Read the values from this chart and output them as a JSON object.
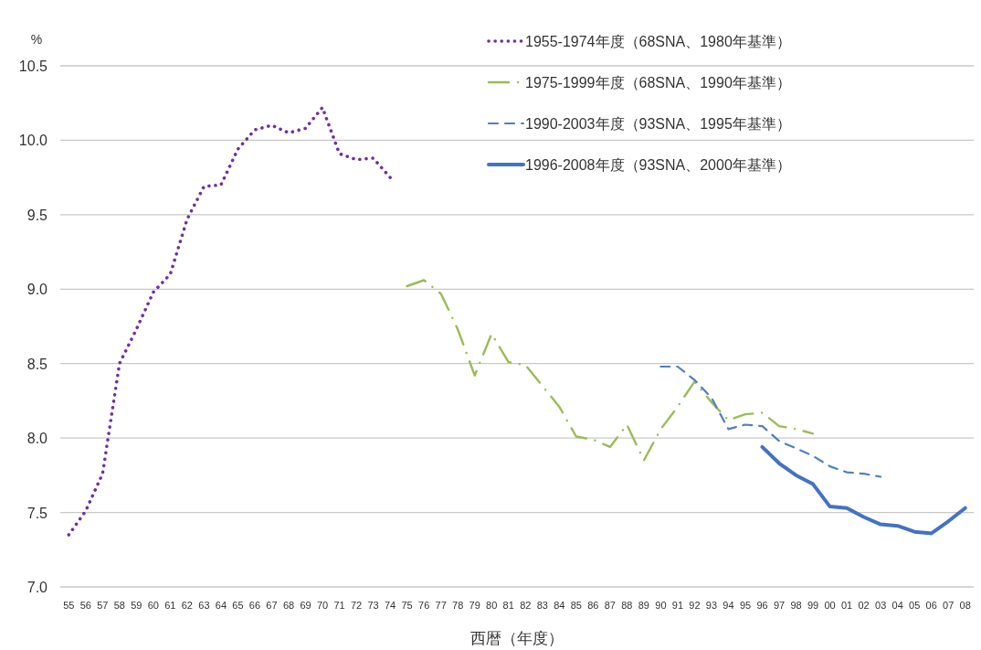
{
  "chart_data": {
    "type": "line",
    "ylabel": "%",
    "xlabel": "西暦（年度）",
    "categories": [
      "55",
      "56",
      "57",
      "58",
      "59",
      "60",
      "61",
      "62",
      "63",
      "64",
      "65",
      "66",
      "67",
      "68",
      "69",
      "70",
      "71",
      "72",
      "73",
      "74",
      "75",
      "76",
      "77",
      "78",
      "79",
      "80",
      "81",
      "82",
      "83",
      "84",
      "85",
      "86",
      "87",
      "88",
      "89",
      "90",
      "91",
      "92",
      "93",
      "94",
      "95",
      "96",
      "97",
      "98",
      "99",
      "00",
      "01",
      "02",
      "03",
      "04",
      "05",
      "06",
      "07",
      "08"
    ],
    "ylim": [
      7.0,
      10.5
    ],
    "yticks": [
      {
        "value": 7.0,
        "label": "7.0"
      },
      {
        "value": 7.5,
        "label": "7.5"
      },
      {
        "value": 8.0,
        "label": "8.0"
      },
      {
        "value": 8.5,
        "label": "8.5"
      },
      {
        "value": 9.0,
        "label": "9.0"
      },
      {
        "value": 9.5,
        "label": "9.5"
      },
      {
        "value": 10.0,
        "label": "10.0"
      },
      {
        "value": 10.5,
        "label": "10.5"
      }
    ],
    "grid": "y",
    "legend": "top right",
    "series": [
      {
        "name": "1955-1974年度（68SNA、1980年基準）",
        "color": "#7030a0",
        "line_style": "dotted",
        "values": [
          7.35,
          7.51,
          7.76,
          8.5,
          8.73,
          8.98,
          9.1,
          9.47,
          9.69,
          9.7,
          9.94,
          10.07,
          10.1,
          10.05,
          10.08,
          10.22,
          9.91,
          9.87,
          9.88,
          9.75,
          null,
          null,
          null,
          null,
          null,
          null,
          null,
          null,
          null,
          null,
          null,
          null,
          null,
          null,
          null,
          null,
          null,
          null,
          null,
          null,
          null,
          null,
          null,
          null,
          null,
          null,
          null,
          null,
          null,
          null,
          null,
          null,
          null,
          null
        ]
      },
      {
        "name": "1975-1999年度（68SNA、1990年基準）",
        "color": "#9bbb59",
        "line_style": "dashdot",
        "values": [
          null,
          null,
          null,
          null,
          null,
          null,
          null,
          null,
          null,
          null,
          null,
          null,
          null,
          null,
          null,
          null,
          null,
          null,
          null,
          null,
          9.02,
          9.06,
          8.97,
          8.73,
          8.42,
          8.7,
          8.51,
          8.49,
          8.35,
          8.21,
          8.01,
          7.99,
          7.94,
          8.09,
          7.85,
          8.06,
          8.21,
          8.38,
          8.24,
          8.12,
          8.16,
          8.17,
          8.08,
          8.06,
          8.03,
          null,
          null,
          null,
          null,
          null,
          null,
          null,
          null,
          null
        ]
      },
      {
        "name": "1990-2003年度（93SNA、1995年基準）",
        "color": "#4f81bd",
        "line_style": "dashed",
        "values": [
          null,
          null,
          null,
          null,
          null,
          null,
          null,
          null,
          null,
          null,
          null,
          null,
          null,
          null,
          null,
          null,
          null,
          null,
          null,
          null,
          null,
          null,
          null,
          null,
          null,
          null,
          null,
          null,
          null,
          null,
          null,
          null,
          null,
          null,
          null,
          8.48,
          8.48,
          8.39,
          8.27,
          8.06,
          8.09,
          8.08,
          7.98,
          7.93,
          7.88,
          7.81,
          7.77,
          7.76,
          7.74,
          null,
          null,
          null,
          null,
          null
        ]
      },
      {
        "name": "1996-2008年度（93SNA、2000年基準）",
        "color": "#4472c4",
        "line_style": "solid",
        "values": [
          null,
          null,
          null,
          null,
          null,
          null,
          null,
          null,
          null,
          null,
          null,
          null,
          null,
          null,
          null,
          null,
          null,
          null,
          null,
          null,
          null,
          null,
          null,
          null,
          null,
          null,
          null,
          null,
          null,
          null,
          null,
          null,
          null,
          null,
          null,
          null,
          null,
          null,
          null,
          null,
          null,
          7.94,
          7.83,
          7.75,
          7.69,
          7.54,
          7.53,
          7.47,
          7.42,
          7.41,
          7.37,
          7.36,
          7.44,
          7.53
        ]
      }
    ]
  }
}
